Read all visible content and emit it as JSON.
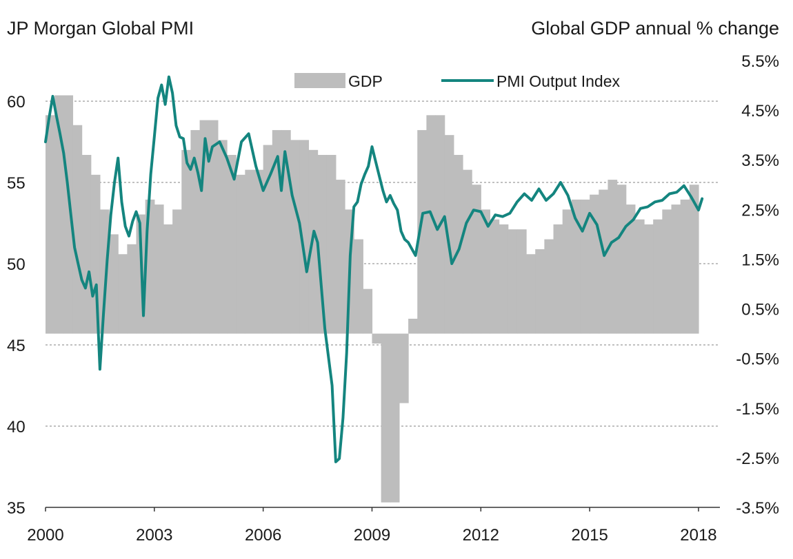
{
  "titles": {
    "left": "JP Morgan Global PMI",
    "right": "Global GDP annual % change"
  },
  "colors": {
    "gdp": "#bdbdbd",
    "pmi": "#14857f",
    "grid": "#9a9a9a"
  },
  "chart_data": {
    "type": "line",
    "left_axis": {
      "label": "JP Morgan Global PMI",
      "range": [
        35,
        62.5
      ],
      "ticks": [
        "35",
        "40",
        "45",
        "50",
        "55",
        "60"
      ]
    },
    "right_axis": {
      "label": "Global GDP annual % change",
      "range": [
        -3.5,
        5.5
      ],
      "ticks": [
        "-3.5%",
        "-2.5%",
        "-1.5%",
        "-0.5%",
        "0.5%",
        "1.5%",
        "2.5%",
        "3.5%",
        "4.5%",
        "5.5%"
      ]
    },
    "x_axis": {
      "range": [
        2000,
        2018.4
      ],
      "ticks": [
        "2000",
        "2003",
        "2006",
        "2009",
        "2012",
        "2015",
        "2018"
      ]
    },
    "grid": true,
    "legend": {
      "position": "top",
      "entries": [
        "GDP",
        "PMI Output Index"
      ]
    },
    "series": [
      {
        "name": "GDP",
        "type": "bar",
        "axis": "right",
        "quarters": [
          "2000 Q1",
          "2000 Q2",
          "2000 Q3",
          "2000 Q4",
          "2001 Q1",
          "2001 Q2",
          "2001 Q3",
          "2001 Q4",
          "2002 Q1",
          "2002 Q2",
          "2002 Q3",
          "2002 Q4",
          "2003 Q1",
          "2003 Q2",
          "2003 Q3",
          "2003 Q4",
          "2004 Q1",
          "2004 Q2",
          "2004 Q3",
          "2004 Q4",
          "2005 Q1",
          "2005 Q2",
          "2005 Q3",
          "2005 Q4",
          "2006 Q1",
          "2006 Q2",
          "2006 Q3",
          "2006 Q4",
          "2007 Q1",
          "2007 Q2",
          "2007 Q3",
          "2007 Q4",
          "2008 Q1",
          "2008 Q2",
          "2008 Q3",
          "2008 Q4",
          "2009 Q1",
          "2009 Q2",
          "2009 Q3",
          "2009 Q4",
          "2010 Q1",
          "2010 Q2",
          "2010 Q3",
          "2010 Q4",
          "2011 Q1",
          "2011 Q2",
          "2011 Q3",
          "2011 Q4",
          "2012 Q1",
          "2012 Q2",
          "2012 Q3",
          "2012 Q4",
          "2013 Q1",
          "2013 Q2",
          "2013 Q3",
          "2013 Q4",
          "2014 Q1",
          "2014 Q2",
          "2014 Q3",
          "2014 Q4",
          "2015 Q1",
          "2015 Q2",
          "2015 Q3",
          "2015 Q4",
          "2016 Q1",
          "2016 Q2",
          "2016 Q3",
          "2016 Q4",
          "2017 Q1",
          "2017 Q2",
          "2017 Q3",
          "2017 Q4"
        ],
        "values": [
          4.4,
          4.8,
          4.8,
          4.2,
          3.6,
          3.2,
          2.5,
          2.0,
          1.6,
          1.8,
          2.4,
          2.7,
          2.6,
          2.2,
          2.5,
          3.7,
          4.1,
          4.3,
          4.3,
          3.9,
          3.6,
          3.2,
          3.3,
          3.3,
          3.8,
          4.1,
          4.1,
          3.9,
          3.9,
          3.7,
          3.6,
          3.6,
          3.1,
          2.5,
          1.9,
          0.9,
          -0.2,
          -3.4,
          -3.4,
          -1.4,
          0.3,
          4.1,
          4.4,
          4.4,
          4.0,
          3.6,
          3.3,
          3.0,
          2.5,
          2.3,
          2.2,
          2.1,
          2.1,
          1.6,
          1.7,
          1.9,
          2.2,
          2.5,
          2.7,
          2.7,
          2.8,
          2.9,
          3.1,
          3.0,
          2.6,
          2.3,
          2.2,
          2.3,
          2.5,
          2.6,
          2.7,
          3.0
        ]
      },
      {
        "name": "PMI Output Index",
        "type": "line",
        "axis": "left",
        "x": [
          2000.0,
          2000.1,
          2000.2,
          2000.3,
          2000.4,
          2000.5,
          2000.6,
          2000.7,
          2000.8,
          2000.9,
          2001.0,
          2001.1,
          2001.2,
          2001.3,
          2001.4,
          2001.5,
          2001.6,
          2001.7,
          2001.8,
          2001.9,
          2002.0,
          2002.1,
          2002.2,
          2002.3,
          2002.4,
          2002.5,
          2002.6,
          2002.7,
          2002.8,
          2002.9,
          2003.0,
          2003.1,
          2003.2,
          2003.3,
          2003.4,
          2003.5,
          2003.6,
          2003.7,
          2003.8,
          2003.9,
          2004.0,
          2004.1,
          2004.2,
          2004.3,
          2004.4,
          2004.5,
          2004.6,
          2004.8,
          2005.0,
          2005.2,
          2005.4,
          2005.6,
          2005.8,
          2006.0,
          2006.2,
          2006.4,
          2006.5,
          2006.6,
          2006.8,
          2007.0,
          2007.2,
          2007.4,
          2007.5,
          2007.7,
          2007.9,
          2008.0,
          2008.1,
          2008.2,
          2008.3,
          2008.4,
          2008.5,
          2008.6,
          2008.7,
          2008.8,
          2008.9,
          2009.0,
          2009.1,
          2009.2,
          2009.3,
          2009.4,
          2009.5,
          2009.6,
          2009.7,
          2009.8,
          2009.9,
          2010.0,
          2010.2,
          2010.4,
          2010.6,
          2010.8,
          2011.0,
          2011.2,
          2011.4,
          2011.6,
          2011.8,
          2012.0,
          2012.2,
          2012.4,
          2012.6,
          2012.8,
          2013.0,
          2013.2,
          2013.4,
          2013.6,
          2013.8,
          2014.0,
          2014.2,
          2014.4,
          2014.6,
          2014.8,
          2015.0,
          2015.2,
          2015.4,
          2015.6,
          2015.8,
          2016.0,
          2016.2,
          2016.4,
          2016.6,
          2016.8,
          2017.0,
          2017.2,
          2017.4,
          2017.6,
          2017.8,
          2018.0,
          2018.1
        ],
        "values": [
          57.5,
          59.0,
          60.3,
          59.1,
          58.0,
          56.8,
          55.0,
          53.0,
          51.0,
          50.0,
          49.0,
          48.5,
          49.5,
          48.0,
          48.7,
          43.5,
          47.0,
          50.2,
          53.0,
          55.0,
          56.5,
          53.8,
          52.3,
          51.7,
          52.6,
          53.2,
          52.5,
          46.8,
          52.0,
          55.5,
          57.8,
          60.2,
          61.0,
          59.8,
          61.5,
          60.5,
          58.5,
          57.8,
          57.7,
          56.2,
          55.8,
          56.5,
          55.6,
          54.5,
          57.7,
          56.3,
          57.2,
          57.5,
          56.5,
          55.2,
          57.5,
          58.0,
          56.0,
          54.5,
          55.5,
          56.6,
          54.5,
          56.9,
          54.2,
          52.5,
          49.5,
          52.0,
          51.3,
          46.0,
          42.5,
          37.8,
          38.0,
          40.5,
          44.5,
          50.5,
          53.5,
          53.8,
          54.9,
          55.5,
          56.0,
          57.2,
          56.3,
          55.4,
          54.5,
          53.8,
          54.2,
          53.7,
          53.3,
          52.0,
          51.5,
          51.3,
          50.5,
          53.1,
          53.2,
          52.1,
          52.9,
          50.0,
          50.9,
          52.5,
          53.3,
          53.2,
          52.3,
          53.0,
          52.9,
          53.1,
          53.8,
          54.3,
          53.9,
          54.6,
          53.9,
          54.3,
          55.0,
          54.2,
          52.8,
          52.0,
          53.1,
          52.4,
          50.5,
          51.3,
          51.6,
          52.3,
          52.7,
          53.4,
          53.5,
          53.8,
          53.9,
          54.3,
          54.4,
          54.8,
          54.1,
          53.3,
          54.0
        ]
      }
    ]
  }
}
